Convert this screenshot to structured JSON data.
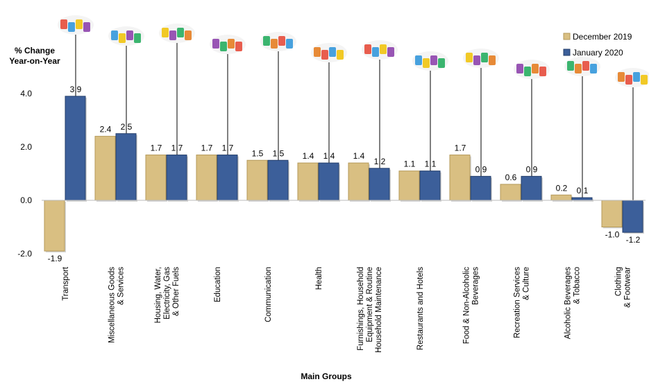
{
  "chart_data": {
    "type": "bar",
    "ylabel": [
      "% Change",
      "Year-on-Year"
    ],
    "xlabel": "Main Groups",
    "ylim": [
      -2.0,
      4.0
    ],
    "yticks": [
      "-2.0",
      "0.0",
      "2.0",
      "4.0"
    ],
    "legend_position": "top-right",
    "categories": [
      [
        "Transport"
      ],
      [
        "Miscellaneous Goods",
        "& Services"
      ],
      [
        "Housing, Water,",
        "Electricity, Gas",
        "& Other Fuels"
      ],
      [
        "Education"
      ],
      [
        "Communication"
      ],
      [
        "Health"
      ],
      [
        "Furnishings, Household",
        "Equipment  & Routine",
        "Household  Maintenance"
      ],
      [
        "Restaurants and Hotels"
      ],
      [
        "Food & Non-Alcoholic",
        "Beverages"
      ],
      [
        "Recreation Services",
        "& Culture"
      ],
      [
        "Alcoholic Beverages",
        "& Tobacco"
      ],
      [
        "Clothing",
        "& Footwear"
      ]
    ],
    "series": [
      {
        "name": "December 2019",
        "color": "#d9bf82",
        "values": [
          -1.9,
          2.4,
          1.7,
          1.7,
          1.5,
          1.4,
          1.4,
          1.1,
          1.7,
          0.6,
          0.2,
          -1.0
        ]
      },
      {
        "name": "January 2020",
        "color": "#3c5f9a",
        "values": [
          3.9,
          2.5,
          1.7,
          1.7,
          1.5,
          1.4,
          1.2,
          1.1,
          0.9,
          0.9,
          0.1,
          -1.2
        ]
      }
    ],
    "icons": [
      "transport-icon",
      "shopping-bags-icon",
      "house-power-icon",
      "graduation-cap-icon",
      "phone-icon",
      "hospital-icon",
      "furniture-icon",
      "hotel-icon",
      "food-basket-icon",
      "guitar-icon",
      "bottles-icon",
      "clothing-icon"
    ]
  }
}
